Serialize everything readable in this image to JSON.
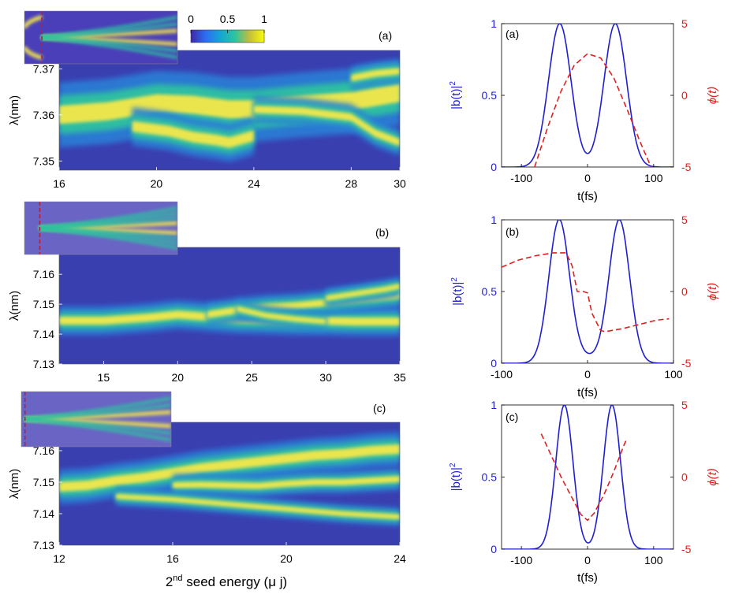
{
  "colors": {
    "blue": "#1f1fd0",
    "red": "#e02020",
    "axis": "#000000",
    "bg": "#ffffff"
  },
  "colorbar": {
    "ticks": [
      "0",
      "0.5",
      "1"
    ]
  },
  "heatmaps": [
    {
      "panel_label": "(a)",
      "ylabel": "λ(nm)",
      "xticks": [
        "16",
        "20",
        "24",
        "28",
        "30"
      ],
      "xtick_values": [
        16,
        20,
        24,
        28,
        30
      ],
      "xlim": [
        16,
        30
      ],
      "yticks": [
        "7.37",
        "7.36",
        "7.35"
      ],
      "ytick_values": [
        7.37,
        7.36,
        7.35
      ],
      "ylim": [
        7.348,
        7.374
      ],
      "inset_marker_x": 17.6,
      "bands": [
        {
          "x": [
            16,
            18,
            20,
            21.5,
            23,
            24,
            26,
            28,
            30
          ],
          "y": [
            7.36,
            7.3608,
            7.3625,
            7.3622,
            7.3612,
            7.3612,
            7.3622,
            7.363,
            7.3648
          ],
          "w": 0.0022
        },
        {
          "x": [
            19,
            20.5,
            21.5,
            22.5,
            23,
            24
          ],
          "y": [
            7.3575,
            7.3565,
            7.3552,
            7.3545,
            7.354,
            7.3555
          ],
          "w": 0.0013
        },
        {
          "x": [
            24,
            26,
            28,
            29,
            30
          ],
          "y": [
            7.3612,
            7.3608,
            7.3595,
            7.356,
            7.354
          ],
          "w": 0.0009
        },
        {
          "x": [
            28,
            29,
            30
          ],
          "y": [
            7.368,
            7.369,
            7.3695
          ],
          "w": 0.0008
        }
      ]
    },
    {
      "panel_label": "(b)",
      "ylabel": "λ(nm)",
      "xticks": [
        "15",
        "20",
        "25",
        "30",
        "35"
      ],
      "xtick_values": [
        15,
        20,
        25,
        30,
        35
      ],
      "xlim": [
        12,
        35
      ],
      "yticks": [
        "7.16",
        "7.15",
        "7.14",
        "7.13"
      ],
      "ytick_values": [
        7.16,
        7.15,
        7.14,
        7.13
      ],
      "ylim": [
        7.13,
        7.169
      ],
      "inset_marker_x": 14.3,
      "bands": [
        {
          "x": [
            12,
            15,
            18,
            20,
            22,
            24,
            26,
            28,
            30,
            32,
            35
          ],
          "y": [
            7.1445,
            7.1445,
            7.1455,
            7.1465,
            7.1458,
            7.145,
            7.1448,
            7.1445,
            7.1445,
            7.1442,
            7.1442
          ],
          "w": 0.0015
        },
        {
          "x": [
            22,
            24,
            26,
            28,
            30,
            32,
            35
          ],
          "y": [
            7.1465,
            7.148,
            7.149,
            7.1495,
            7.1505,
            7.1515,
            7.153
          ],
          "w": 0.0013
        },
        {
          "x": [
            30,
            32,
            34,
            35
          ],
          "y": [
            7.152,
            7.1535,
            7.155,
            7.156
          ],
          "w": 0.001
        },
        {
          "x": [
            24,
            26,
            28,
            30
          ],
          "y": [
            7.1485,
            7.1462,
            7.145,
            7.1442
          ],
          "w": 0.001
        }
      ]
    },
    {
      "panel_label": "(c)",
      "ylabel": "λ(nm)",
      "xlabel_main": "2",
      "xlabel_sup": "nd",
      "xlabel_rest": " seed energy (μ j)",
      "xticks": [
        "12",
        "16",
        "20",
        "24"
      ],
      "xtick_values": [
        12,
        16,
        20,
        24
      ],
      "xlim": [
        12,
        24
      ],
      "yticks": [
        "7.16",
        "7.15",
        "7.14",
        "7.13"
      ],
      "ytick_values": [
        7.16,
        7.15,
        7.14,
        7.13
      ],
      "ylim": [
        7.13,
        7.169
      ],
      "inset_marker_x": 12.3,
      "bands": [
        {
          "x": [
            12,
            13,
            14,
            15,
            16,
            17,
            18,
            19,
            20,
            21,
            22,
            23,
            24
          ],
          "y": [
            7.1485,
            7.149,
            7.1505,
            7.1515,
            7.153,
            7.1545,
            7.1555,
            7.1565,
            7.1575,
            7.1585,
            7.159,
            7.16,
            7.1605
          ],
          "w": 0.0017
        },
        {
          "x": [
            16,
            17,
            18,
            19,
            20,
            21,
            22,
            23,
            24
          ],
          "y": [
            7.149,
            7.1492,
            7.149,
            7.1488,
            7.1495,
            7.15,
            7.15,
            7.1505,
            7.151
          ],
          "w": 0.0011
        },
        {
          "x": [
            14,
            15,
            16,
            18,
            20,
            22,
            24
          ],
          "y": [
            7.1455,
            7.145,
            7.1445,
            7.143,
            7.1415,
            7.14,
            7.139
          ],
          "w": 0.0009
        }
      ]
    }
  ],
  "lineplots": [
    {
      "panel_label": "(a)",
      "ylabel_left": "|b(t)|",
      "ylabel_left_sup": "2",
      "ylabel_right": "ϕ(t)",
      "xlabel": "t(fs)",
      "xticks": [
        "-100",
        "0",
        "100"
      ],
      "xtick_values": [
        -100,
        0,
        100
      ],
      "xlim": [
        -130,
        130
      ],
      "yticks_left": [
        "0",
        "0.5",
        "1"
      ],
      "ylim_left": [
        0,
        1
      ],
      "yticks_right": [
        "-5",
        "0",
        "5"
      ],
      "ylim_right": [
        -5,
        5
      ],
      "pulses": {
        "centers": [
          -42,
          42
        ],
        "sigma": 17,
        "floor": 0
      },
      "phase": {
        "x": [
          -80,
          -60,
          -40,
          -20,
          0,
          20,
          40,
          60,
          80,
          100
        ],
        "y": [
          -5,
          -2.2,
          0.3,
          2.1,
          2.9,
          2.6,
          1.2,
          -1,
          -3.3,
          -5.4
        ]
      }
    },
    {
      "panel_label": "(b)",
      "ylabel_left": "|b(t)|",
      "ylabel_left_sup": "2",
      "ylabel_right": "ϕ(t)",
      "xlabel": "t(fs)",
      "xticks": [
        "-100",
        "0",
        "100"
      ],
      "xtick_values": [
        -100,
        0,
        100
      ],
      "xlim": [
        -100,
        100
      ],
      "yticks_left": [
        "0",
        "0.5",
        "1"
      ],
      "ylim_left": [
        0,
        1
      ],
      "yticks_right": [
        "-5",
        "0",
        "5"
      ],
      "ylim_right": [
        -5,
        5
      ],
      "pulses": {
        "centers": [
          -33,
          37
        ],
        "sigma": 12,
        "floor": 0.04
      },
      "phase": {
        "x": [
          -100,
          -80,
          -60,
          -40,
          -25,
          -18,
          -12,
          -5,
          0,
          5,
          10,
          15,
          20,
          30,
          40,
          60,
          80,
          95
        ],
        "y": [
          1.7,
          2.2,
          2.5,
          2.7,
          2.7,
          1.8,
          0,
          0,
          -0.1,
          -1.5,
          -2.1,
          -2.7,
          -2.8,
          -2.7,
          -2.6,
          -2.3,
          -2,
          -1.9
        ]
      }
    },
    {
      "panel_label": "(c)",
      "ylabel_left": "|b(t)|",
      "ylabel_left_sup": "2",
      "ylabel_right": "ϕ(t)",
      "xlabel": "t(fs)",
      "xticks": [
        "-100",
        "0",
        "100"
      ],
      "xtick_values": [
        -100,
        0,
        100
      ],
      "xlim": [
        -130,
        130
      ],
      "yticks_left": [
        "0",
        "0.5",
        "1"
      ],
      "ylim_left": [
        0,
        1
      ],
      "yticks_right": [
        "-5",
        "0",
        "5"
      ],
      "ylim_right": [
        -5,
        5
      ],
      "pulses": {
        "centers": [
          -35,
          37
        ],
        "sigma": 13,
        "floor": 0
      },
      "phase": {
        "x": [
          -70,
          -55,
          -40,
          -25,
          -10,
          0,
          10,
          25,
          40,
          55,
          60
        ],
        "y": [
          3,
          1.5,
          0,
          -1.3,
          -2.6,
          -3,
          -2.5,
          -1.2,
          0.4,
          2.2,
          2.7
        ]
      }
    }
  ],
  "chart_data": [
    {
      "type": "heatmap",
      "title": "(a)",
      "xlabel": "",
      "ylabel": "λ(nm)",
      "xlim": [
        16,
        30
      ],
      "ylim": [
        7.348,
        7.374
      ],
      "colorbar": [
        0,
        1
      ]
    },
    {
      "type": "heatmap",
      "title": "(b)",
      "xlabel": "",
      "ylabel": "λ(nm)",
      "xlim": [
        12,
        35
      ],
      "ylim": [
        7.13,
        7.169
      ]
    },
    {
      "type": "heatmap",
      "title": "(c)",
      "xlabel": "2nd seed energy (μ j)",
      "ylabel": "λ(nm)",
      "xlim": [
        12,
        24
      ],
      "ylim": [
        7.13,
        7.169
      ]
    },
    {
      "type": "line",
      "title": "(a)",
      "xlabel": "t(fs)",
      "ylabel": "|b(t)|^2",
      "ylabel_right": "ϕ(t)",
      "xlim": [
        -130,
        130
      ],
      "ylim": [
        0,
        1
      ],
      "ylim_right": [
        -5,
        5
      ],
      "series": [
        {
          "name": "|b(t)|^2",
          "peaks_at": [
            -42,
            42
          ],
          "values_at_peaks": [
            1,
            1
          ],
          "value_at_0": 0.15
        },
        {
          "name": "ϕ(t)",
          "x": [
            -80,
            -40,
            0,
            40,
            80
          ],
          "values": [
            -5,
            0.3,
            2.9,
            1.2,
            -3.3
          ]
        }
      ]
    },
    {
      "type": "line",
      "title": "(b)",
      "xlabel": "t(fs)",
      "ylabel": "|b(t)|^2",
      "ylabel_right": "ϕ(t)",
      "xlim": [
        -100,
        100
      ],
      "ylim": [
        0,
        1
      ],
      "ylim_right": [
        -5,
        5
      ],
      "series": [
        {
          "name": "|b(t)|^2",
          "peaks_at": [
            -33,
            37
          ],
          "values_at_peaks": [
            1,
            1
          ],
          "value_at_0": 0.04
        },
        {
          "name": "ϕ(t)",
          "x": [
            -100,
            -40,
            0,
            20,
            95
          ],
          "values": [
            1.7,
            2.7,
            -0.1,
            -2.8,
            -1.9
          ]
        }
      ]
    },
    {
      "type": "line",
      "title": "(c)",
      "xlabel": "t(fs)",
      "ylabel": "|b(t)|^2",
      "ylabel_right": "ϕ(t)",
      "xlim": [
        -130,
        130
      ],
      "ylim": [
        0,
        1
      ],
      "ylim_right": [
        -5,
        5
      ],
      "series": [
        {
          "name": "|b(t)|^2",
          "peaks_at": [
            -35,
            37
          ],
          "values_at_peaks": [
            1,
            1
          ],
          "value_at_0": 0.05
        },
        {
          "name": "ϕ(t)",
          "x": [
            -70,
            0,
            60
          ],
          "values": [
            3,
            -3,
            2.7
          ]
        }
      ]
    }
  ]
}
